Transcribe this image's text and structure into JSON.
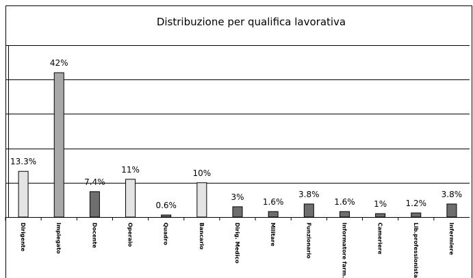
{
  "chart_data": {
    "type": "bar",
    "title": "Distribuzione per qualifica lavorativa",
    "categories": [
      "Dirigente",
      "Impiegato",
      "Docente",
      "Operaio",
      "Quadro",
      "Bancario",
      "Dirig. Medico",
      "Militare",
      "Funzionario",
      "Informatore farm.",
      "Cameriere",
      "Lib.professionista",
      "Infermiere"
    ],
    "values": [
      13.3,
      42,
      7.4,
      11,
      0.6,
      10,
      3,
      1.6,
      3.8,
      1.6,
      1,
      1.2,
      3.8
    ],
    "value_labels": [
      "13.3%",
      "42%",
      "7.4%",
      "11%",
      "0.6%",
      "10%",
      "3%",
      "1.6%",
      "3.8%",
      "1.6%",
      "1%",
      "1.2%",
      "3.8%"
    ],
    "colors": [
      "#e4e4e4",
      "#a8a8a8",
      "#6e6e6e",
      "#e4e4e4",
      "#6e6e6e",
      "#e4e4e4",
      "#6e6e6e",
      "#6e6e6e",
      "#6e6e6e",
      "#6e6e6e",
      "#6e6e6e",
      "#6e6e6e",
      "#6e6e6e"
    ],
    "ylim": [
      0,
      50
    ],
    "yticks": [
      0,
      10,
      20,
      30,
      40,
      50
    ],
    "grid": true
  }
}
